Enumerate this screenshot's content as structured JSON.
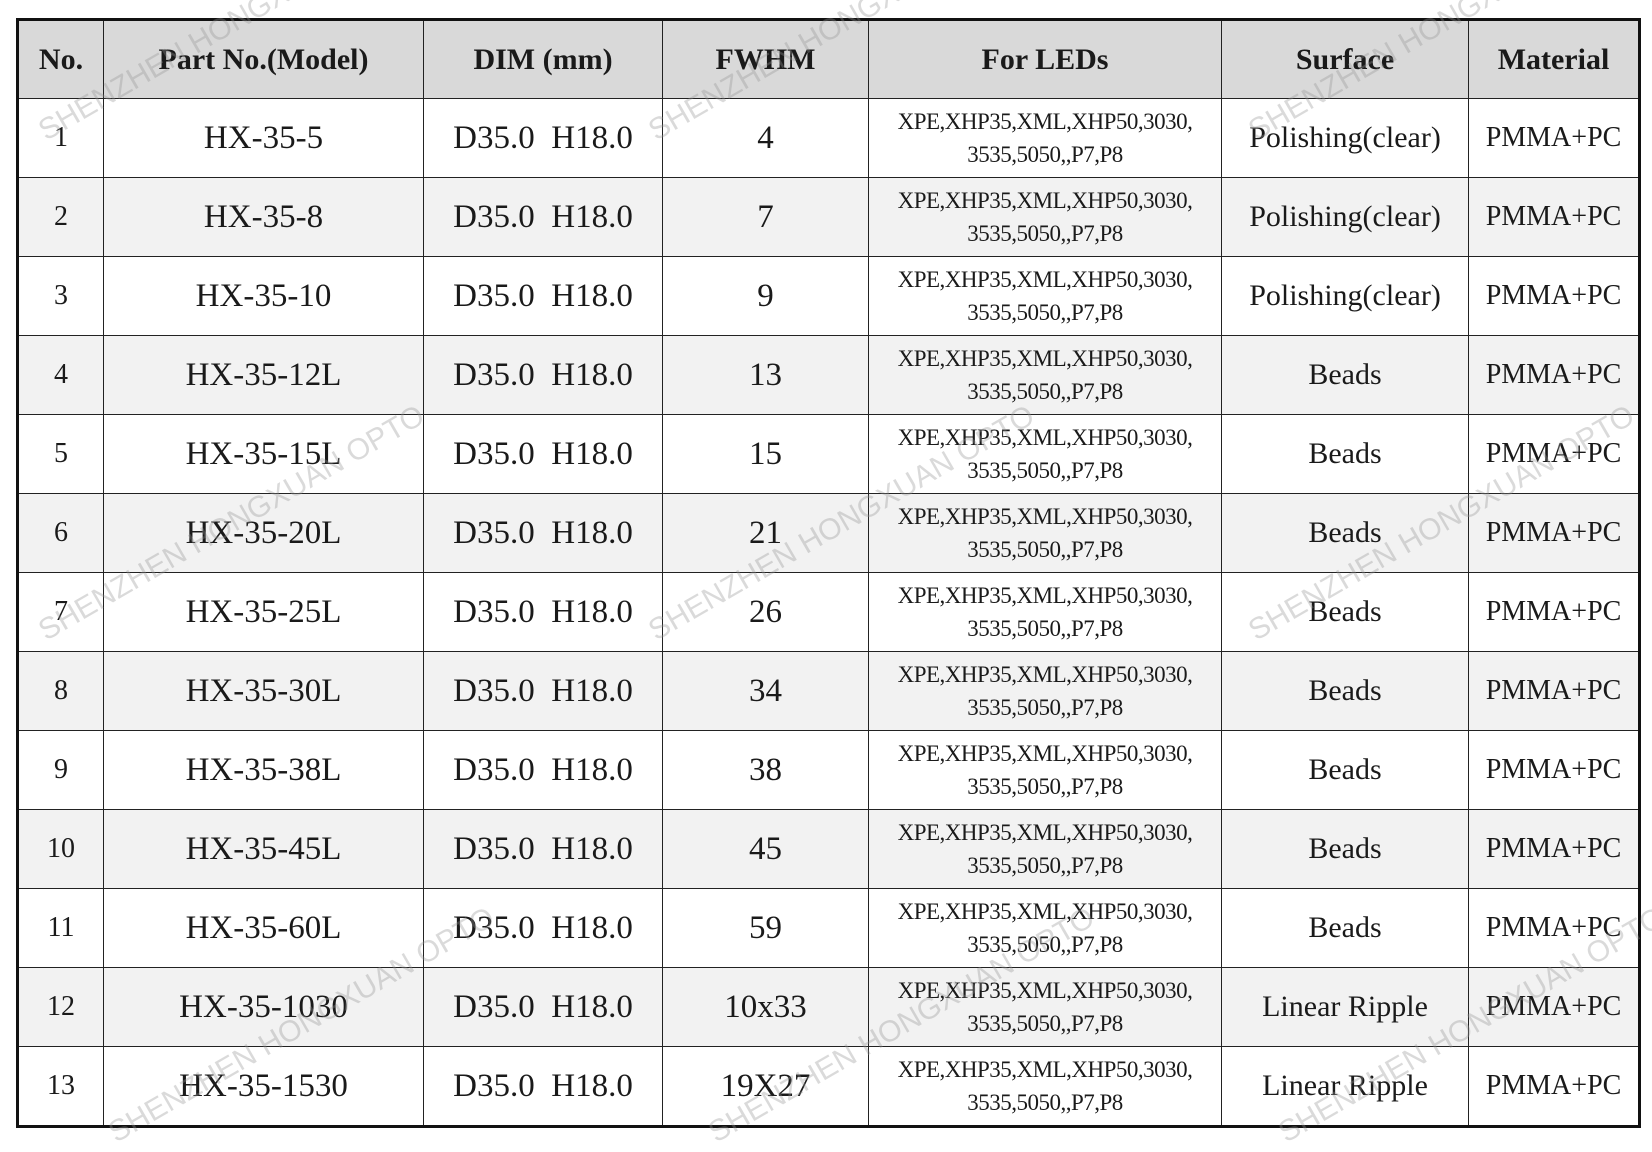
{
  "headers": [
    "No.",
    "Part No.(Model)",
    "DIM  (mm)",
    "FWHM",
    "For LEDs",
    "Surface",
    "Material"
  ],
  "leds_line1": "XPE,XHP35,XML,XHP50,3030,",
  "leds_line2": "3535,5050,,P7,P8",
  "rows": [
    {
      "no": "1",
      "model": "HX-35-5",
      "dim": "D35.0  H18.0",
      "fwhm": "4",
      "surface": "Polishing(clear)",
      "material": "PMMA+PC"
    },
    {
      "no": "2",
      "model": "HX-35-8",
      "dim": "D35.0  H18.0",
      "fwhm": "7",
      "surface": "Polishing(clear)",
      "material": "PMMA+PC"
    },
    {
      "no": "3",
      "model": "HX-35-10",
      "dim": "D35.0  H18.0",
      "fwhm": "9",
      "surface": "Polishing(clear)",
      "material": "PMMA+PC"
    },
    {
      "no": "4",
      "model": "HX-35-12L",
      "dim": "D35.0  H18.0",
      "fwhm": "13",
      "surface": "Beads",
      "material": "PMMA+PC"
    },
    {
      "no": "5",
      "model": "HX-35-15L",
      "dim": "D35.0  H18.0",
      "fwhm": "15",
      "surface": "Beads",
      "material": "PMMA+PC"
    },
    {
      "no": "6",
      "model": "HX-35-20L",
      "dim": "D35.0  H18.0",
      "fwhm": "21",
      "surface": "Beads",
      "material": "PMMA+PC"
    },
    {
      "no": "7",
      "model": "HX-35-25L",
      "dim": "D35.0  H18.0",
      "fwhm": "26",
      "surface": "Beads",
      "material": "PMMA+PC"
    },
    {
      "no": "8",
      "model": "HX-35-30L",
      "dim": "D35.0  H18.0",
      "fwhm": "34",
      "surface": "Beads",
      "material": "PMMA+PC"
    },
    {
      "no": "9",
      "model": "HX-35-38L",
      "dim": "D35.0  H18.0",
      "fwhm": "38",
      "surface": "Beads",
      "material": "PMMA+PC"
    },
    {
      "no": "10",
      "model": "HX-35-45L",
      "dim": "D35.0  H18.0",
      "fwhm": "45",
      "surface": "Beads",
      "material": "PMMA+PC"
    },
    {
      "no": "11",
      "model": "HX-35-60L",
      "dim": "D35.0  H18.0",
      "fwhm": "59",
      "surface": "Beads",
      "material": "PMMA+PC"
    },
    {
      "no": "12",
      "model": "HX-35-1030",
      "dim": "D35.0  H18.0",
      "fwhm": "10x33",
      "surface": "Linear Ripple",
      "material": "PMMA+PC"
    },
    {
      "no": "13",
      "model": "HX-35-1530",
      "dim": "D35.0  H18.0",
      "fwhm": "19X27",
      "surface": "Linear Ripple",
      "material": "PMMA+PC"
    }
  ],
  "watermark": "SHENZHEN HONGXUAN OPTO"
}
